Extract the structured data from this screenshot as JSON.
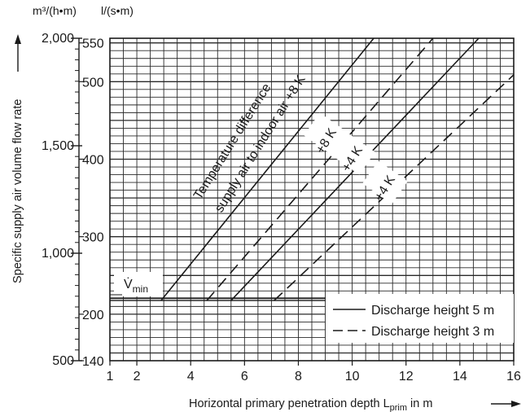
{
  "chart_data": {
    "type": "line",
    "title": "",
    "xlabel": "Horizontal primary penetration depth L",
    "xlabel_sub": "prim",
    "xlabel_tail": " in m",
    "ylabel": "Specific supply air volume flow rate",
    "units": {
      "left": "m³/(h•m)",
      "right": "l/(s•m)"
    },
    "xlim": [
      1,
      16
    ],
    "ylim_left": [
      500,
      2000
    ],
    "ylim_right": [
      140,
      556
    ],
    "x_ticks": [
      {
        "value": 1,
        "label": "1"
      },
      {
        "value": 2,
        "label": "2"
      },
      {
        "value": 4,
        "label": "4"
      },
      {
        "value": 6,
        "label": "6"
      },
      {
        "value": 8,
        "label": "8"
      },
      {
        "value": 10,
        "label": "10"
      },
      {
        "value": 12,
        "label": "12"
      },
      {
        "value": 14,
        "label": "14"
      },
      {
        "value": 16,
        "label": "16"
      }
    ],
    "y_ticks_left": [
      {
        "value": 500,
        "label": "500"
      },
      {
        "value": 1000,
        "label": "1,000"
      },
      {
        "value": 1500,
        "label": "1,500"
      },
      {
        "value": 2000,
        "label": "2,000"
      }
    ],
    "y_ticks_right": [
      {
        "value": 140,
        "label": "140"
      },
      {
        "value": 200,
        "label": "200"
      },
      {
        "value": 300,
        "label": "300"
      },
      {
        "value": 400,
        "label": "400"
      },
      {
        "value": 500,
        "label": "500"
      },
      {
        "value": 550,
        "label": "550"
      }
    ],
    "grid": true,
    "vmin": {
      "label_main": "V̇",
      "label_sub": "min",
      "value": 780
    },
    "series": [
      {
        "style": "solid",
        "x": [
          2.9,
          10.8
        ],
        "y": [
          780,
          2000
        ]
      },
      {
        "style": "dashed",
        "x": [
          4.6,
          13.0
        ],
        "y": [
          780,
          2000
        ]
      },
      {
        "style": "solid",
        "x": [
          5.5,
          14.7
        ],
        "y": [
          780,
          2000
        ]
      },
      {
        "style": "dashed",
        "x": [
          7.1,
          16.0
        ],
        "y": [
          780,
          1830
        ]
      }
    ],
    "annotations": [
      {
        "text": "Temperature difference"
      },
      {
        "text": "supply air to indoor air +8 K"
      },
      {
        "text": "+8 K"
      },
      {
        "text": "+4 K"
      },
      {
        "text": "+4 K"
      }
    ],
    "legend": {
      "placement": "bottom-right",
      "entries": [
        {
          "style": "solid",
          "label": "Discharge height 5 m"
        },
        {
          "style": "dashed",
          "label": "Discharge height 3 m"
        }
      ]
    }
  }
}
